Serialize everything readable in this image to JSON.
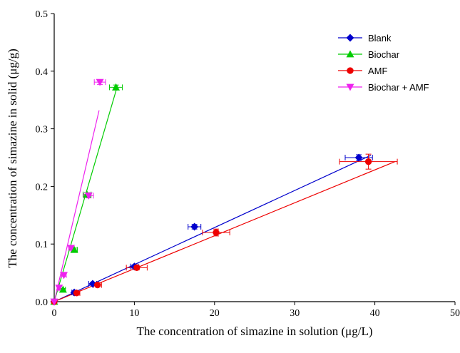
{
  "chart_data": {
    "type": "scatter",
    "title": "",
    "xlabel": "The concentration of simazine in solution (μg/L)",
    "ylabel": "The concentration of simazine in solid (μg/g)",
    "xlim": [
      0,
      50
    ],
    "ylim": [
      0,
      0.5
    ],
    "xticks": [
      0,
      10,
      20,
      30,
      40,
      50
    ],
    "yticks": [
      0.0,
      0.1,
      0.2,
      0.3,
      0.4,
      0.5
    ],
    "grid": false,
    "legend_position": "top-right",
    "series": [
      {
        "name": "Blank",
        "color": "#0000cc",
        "marker": "diamond",
        "points": [
          {
            "x": 0,
            "y": 0,
            "xerr": 0,
            "yerr": 0
          },
          {
            "x": 2.5,
            "y": 0.016,
            "xerr": 0.3,
            "yerr": 0.001
          },
          {
            "x": 4.8,
            "y": 0.031,
            "xerr": 0.5,
            "yerr": 0.002
          },
          {
            "x": 10.0,
            "y": 0.061,
            "xerr": 0.5,
            "yerr": 0.003
          },
          {
            "x": 17.5,
            "y": 0.13,
            "xerr": 0.8,
            "yerr": 0.004
          },
          {
            "x": 38.0,
            "y": 0.25,
            "xerr": 1.7,
            "yerr": 0.005
          }
        ],
        "fit_line": {
          "x": [
            0,
            39.5
          ],
          "y": [
            0,
            0.254
          ]
        }
      },
      {
        "name": "Biochar",
        "color": "#00cc00",
        "marker": "triangle-up",
        "points": [
          {
            "x": 0,
            "y": 0,
            "xerr": 0,
            "yerr": 0
          },
          {
            "x": 1.1,
            "y": 0.021,
            "xerr": 0.3,
            "yerr": 0.002
          },
          {
            "x": 2.5,
            "y": 0.09,
            "xerr": 0.4,
            "yerr": 0.003
          },
          {
            "x": 4.1,
            "y": 0.186,
            "xerr": 0.5,
            "yerr": 0.003
          },
          {
            "x": 7.7,
            "y": 0.372,
            "xerr": 0.8,
            "yerr": 0.004
          }
        ],
        "fit_line": {
          "x": [
            0,
            7.9
          ],
          "y": [
            0,
            0.375
          ]
        }
      },
      {
        "name": "AMF",
        "color": "#ee0000",
        "marker": "circle",
        "points": [
          {
            "x": 0,
            "y": 0,
            "xerr": 0,
            "yerr": 0
          },
          {
            "x": 2.8,
            "y": 0.015,
            "xerr": 0.4,
            "yerr": 0.002
          },
          {
            "x": 5.4,
            "y": 0.029,
            "xerr": 0.5,
            "yerr": 0.002
          },
          {
            "x": 10.3,
            "y": 0.059,
            "xerr": 1.3,
            "yerr": 0.004
          },
          {
            "x": 20.2,
            "y": 0.12,
            "xerr": 1.7,
            "yerr": 0.006
          },
          {
            "x": 39.2,
            "y": 0.243,
            "xerr": 3.6,
            "yerr": 0.013
          }
        ],
        "fit_line": {
          "x": [
            0,
            42.5
          ],
          "y": [
            0,
            0.243
          ]
        }
      },
      {
        "name": "Biochar + AMF",
        "color": "#ee22ee",
        "marker": "triangle-down",
        "points": [
          {
            "x": 0,
            "y": 0,
            "xerr": 0,
            "yerr": 0
          },
          {
            "x": 0.6,
            "y": 0.024,
            "xerr": 0.2,
            "yerr": 0.002
          },
          {
            "x": 1.2,
            "y": 0.046,
            "xerr": 0.3,
            "yerr": 0.002
          },
          {
            "x": 2.1,
            "y": 0.093,
            "xerr": 0.3,
            "yerr": 0.003
          },
          {
            "x": 4.3,
            "y": 0.184,
            "xerr": 0.6,
            "yerr": 0.004
          },
          {
            "x": 5.7,
            "y": 0.381,
            "xerr": 0.7,
            "yerr": 0.004
          }
        ],
        "fit_line": {
          "x": [
            0,
            5.6
          ],
          "y": [
            0,
            0.332
          ]
        }
      }
    ]
  }
}
